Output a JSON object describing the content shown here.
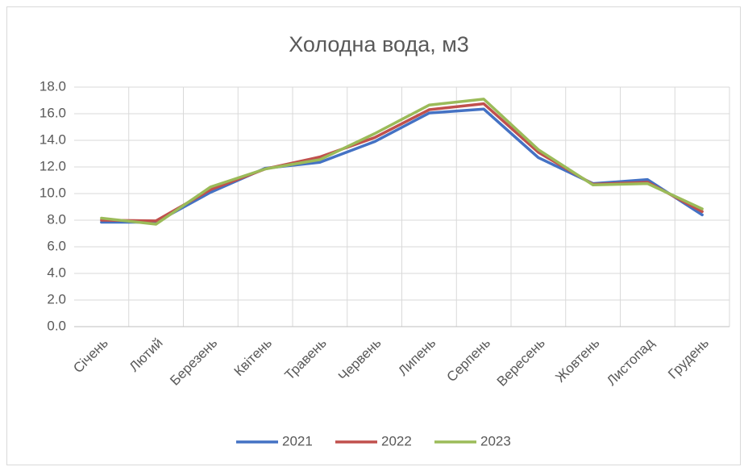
{
  "chart_data": {
    "type": "line",
    "title": "Холодна вода, м3",
    "categories": [
      "Січень",
      "Лютий",
      "Березень",
      "Квітень",
      "Травень",
      "Червень",
      "Липень",
      "Серпень",
      "Вересень",
      "Жовтень",
      "Листопад",
      "Грудень"
    ],
    "series": [
      {
        "name": "2021",
        "color": "#4472c4",
        "values": [
          7.85,
          7.85,
          10.1,
          11.9,
          12.35,
          13.9,
          16.05,
          16.35,
          12.7,
          10.75,
          11.05,
          8.4
        ]
      },
      {
        "name": "2022",
        "color": "#c0504d",
        "values": [
          8.0,
          7.95,
          10.3,
          11.85,
          12.75,
          14.2,
          16.3,
          16.75,
          13.1,
          10.7,
          10.85,
          8.65
        ]
      },
      {
        "name": "2023",
        "color": "#9bbb59",
        "values": [
          8.15,
          7.7,
          10.5,
          11.85,
          12.55,
          14.5,
          16.65,
          17.1,
          13.3,
          10.65,
          10.75,
          8.85
        ]
      }
    ],
    "ylim": [
      0,
      18
    ],
    "yticks": [
      {
        "value": 0,
        "label": "0.0"
      },
      {
        "value": 2,
        "label": "2.0"
      },
      {
        "value": 4,
        "label": "4.0"
      },
      {
        "value": 6,
        "label": "6.0"
      },
      {
        "value": 8,
        "label": "8.0"
      },
      {
        "value": 10,
        "label": "10.0"
      },
      {
        "value": 12,
        "label": "12.0"
      },
      {
        "value": 14,
        "label": "14.0"
      },
      {
        "value": 16,
        "label": "16.0"
      },
      {
        "value": 18,
        "label": "18.0"
      }
    ],
    "grid": true,
    "legend": "bottom"
  }
}
